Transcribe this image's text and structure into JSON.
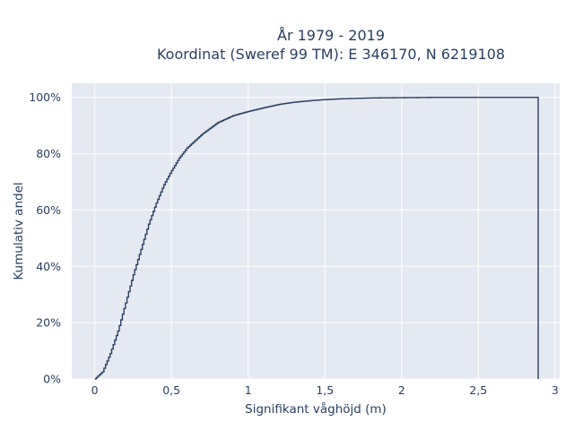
{
  "chart_data": {
    "type": "line",
    "step": true,
    "title": [
      "År 1979 - 2019",
      "Koordinat (Sweref 99 TM): E 346170, N 6219108"
    ],
    "xlabel": "Signifikant våghöjd (m)",
    "ylabel": "Kumulativ andel",
    "xlim": [
      -0.15,
      3.03
    ],
    "ylim": [
      0,
      1.05
    ],
    "xticks": [
      0,
      0.5,
      1,
      1.5,
      2,
      2.5,
      3
    ],
    "xtick_labels": [
      "0",
      "0,5",
      "1",
      "1,5",
      "2",
      "2,5",
      "3"
    ],
    "yticks": [
      0,
      0.2,
      0.4,
      0.6,
      0.8,
      1.0
    ],
    "ytick_labels": [
      "0%",
      "20%",
      "40%",
      "60%",
      "80%",
      "100%"
    ],
    "grid": true,
    "background_color": "#e5e9f2",
    "line_color": "#2a3f5f",
    "series": [
      {
        "x": [
          0,
          0.05,
          0.1,
          0.15,
          0.2,
          0.25,
          0.3,
          0.35,
          0.4,
          0.45,
          0.5,
          0.55,
          0.6,
          0.7,
          0.8,
          0.9,
          1.0,
          1.1,
          1.2,
          1.3,
          1.4,
          1.5,
          1.6,
          1.8,
          2.0,
          2.2,
          2.5,
          2.89
        ],
        "y": [
          0,
          0.025,
          0.09,
          0.17,
          0.27,
          0.37,
          0.46,
          0.55,
          0.625,
          0.69,
          0.74,
          0.785,
          0.82,
          0.87,
          0.91,
          0.935,
          0.95,
          0.963,
          0.975,
          0.983,
          0.988,
          0.992,
          0.995,
          0.998,
          0.999,
          1.0,
          1.0,
          1.0
        ]
      }
    ]
  }
}
